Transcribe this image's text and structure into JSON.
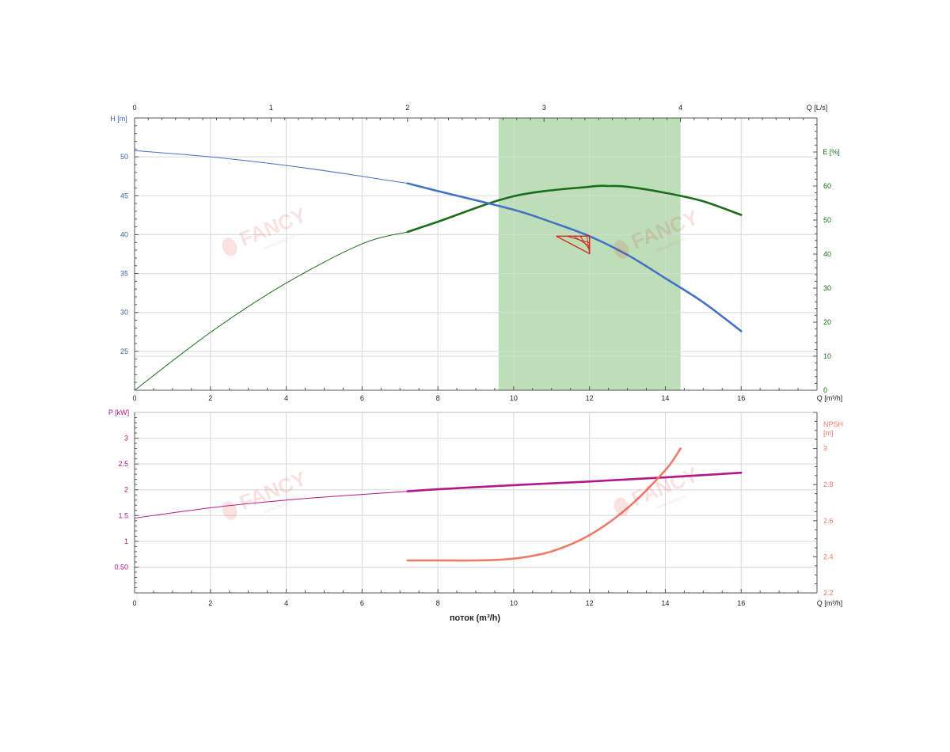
{
  "chart_data": [
    {
      "type": "line",
      "name": "head-efficiency",
      "x_axis": {
        "label": "Q [m³/h]",
        "range": [
          0,
          18
        ],
        "ticks": [
          0,
          2,
          4,
          6,
          8,
          10,
          12,
          14,
          16
        ]
      },
      "x_top_axis": {
        "label": "Q [L/s]",
        "ticks": [
          0,
          1,
          2,
          3,
          4
        ]
      },
      "y_left": {
        "label": "H [m]",
        "range": [
          20,
          55
        ],
        "ticks": [
          25,
          30,
          35,
          40,
          45,
          50
        ]
      },
      "y_right": {
        "label": "E [%]",
        "range": [
          0,
          80
        ],
        "ticks": [
          0,
          10,
          20,
          30,
          40,
          50,
          60
        ]
      },
      "grid": true,
      "recommended_range": {
        "x": [
          9.6,
          14.4
        ],
        "color": "#b9dcb4"
      },
      "duty_point_marker": {
        "x": 12,
        "y": 39.5,
        "color": "#d42a1e"
      },
      "series": [
        {
          "name": "H",
          "axis": "left",
          "color": "#4472c4",
          "x": [
            0,
            2,
            4,
            6,
            7.2,
            8,
            10,
            11,
            12,
            13,
            14,
            15,
            16
          ],
          "y": [
            50.8,
            50,
            48.9,
            47.5,
            46.6,
            45.6,
            43.2,
            41.6,
            39.8,
            37.4,
            34.4,
            31.3,
            27.6
          ],
          "bold_from": 7.2
        },
        {
          "name": "E",
          "axis": "right",
          "color": "#1a6e1a",
          "x": [
            0,
            2,
            4,
            6,
            7.2,
            8,
            10,
            12,
            12.5,
            13,
            14,
            15,
            16
          ],
          "y": [
            0,
            17,
            31.5,
            43,
            46.5,
            49.5,
            57,
            59.8,
            60,
            59.8,
            58,
            55.5,
            51.5
          ],
          "bold_from": 7.2
        }
      ]
    },
    {
      "type": "line",
      "name": "power-npsh",
      "x_axis": {
        "label": "Q [m³/h]",
        "range": [
          0,
          18
        ],
        "ticks": [
          0,
          2,
          4,
          6,
          8,
          10,
          12,
          14,
          16
        ]
      },
      "xlabel": "поток (m³/h)",
      "y_left": {
        "label": "P [kW]",
        "range": [
          0,
          3.5
        ],
        "ticks": [
          0.5,
          1,
          1.5,
          2,
          2.5,
          3
        ],
        "tick_labels": [
          "0.50",
          "1",
          "1.5",
          "2",
          "2.5",
          "3"
        ]
      },
      "y_right": {
        "label": "NPSH [m]",
        "range": [
          2.2,
          3.2
        ],
        "ticks": [
          2.2,
          2.4,
          2.6,
          2.8,
          3
        ],
        "tick_labels": [
          "2.2",
          "2.4",
          "2.6",
          "2.8",
          "3"
        ]
      },
      "grid": true,
      "series": [
        {
          "name": "P",
          "axis": "left",
          "color": "#b3168a",
          "x": [
            0,
            2,
            4,
            6,
            7.2,
            8,
            10,
            12,
            14,
            16
          ],
          "y": [
            1.45,
            1.65,
            1.8,
            1.91,
            1.97,
            2.01,
            2.09,
            2.16,
            2.24,
            2.33
          ],
          "bold_from": 7.2
        },
        {
          "name": "NPSH",
          "axis": "right",
          "color": "#f07a6a",
          "x": [
            7.2,
            8,
            9,
            10,
            11,
            12,
            13,
            14,
            14.4
          ],
          "y": [
            2.38,
            2.38,
            2.38,
            2.39,
            2.43,
            2.52,
            2.67,
            2.88,
            3.0
          ],
          "bold_from": 7.2
        }
      ]
    }
  ],
  "watermark": {
    "text": "FANCY",
    "subtext": "www.fancy.ru"
  }
}
